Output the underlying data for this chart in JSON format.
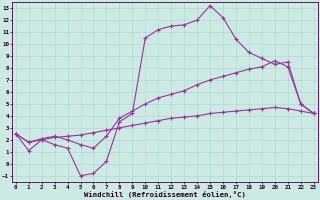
{
  "xlabel": "Windchill (Refroidissement éolien,°C)",
  "bg_color": "#cce9e4",
  "line_color": "#993399",
  "grid_color": "#aad8d2",
  "xlim": [
    -0.3,
    23.3
  ],
  "ylim": [
    -1.5,
    13.5
  ],
  "xticks": [
    0,
    1,
    2,
    3,
    4,
    5,
    6,
    7,
    8,
    9,
    10,
    11,
    12,
    13,
    14,
    15,
    16,
    17,
    18,
    19,
    20,
    21,
    22,
    23
  ],
  "yticks": [
    -1,
    0,
    1,
    2,
    3,
    4,
    5,
    6,
    7,
    8,
    9,
    10,
    11,
    12,
    13
  ],
  "line1_x": [
    0,
    1,
    2,
    3,
    4,
    5,
    6,
    7,
    8,
    9,
    10,
    11,
    12,
    13,
    14,
    15,
    16,
    17,
    18,
    19,
    20,
    21,
    22,
    23
  ],
  "line1_y": [
    2.5,
    1.1,
    2.0,
    1.6,
    1.3,
    -1.0,
    -0.8,
    0.2,
    3.5,
    4.2,
    10.5,
    11.2,
    11.5,
    11.6,
    12.0,
    13.2,
    12.2,
    10.4,
    9.3,
    8.8,
    8.3,
    8.5,
    5.0,
    4.2
  ],
  "line2_x": [
    0,
    1,
    2,
    3,
    4,
    5,
    6,
    7,
    8,
    9,
    10,
    11,
    12,
    13,
    14,
    15,
    16,
    17,
    18,
    19,
    20,
    21,
    22,
    23
  ],
  "line2_y": [
    2.5,
    1.8,
    2.1,
    2.3,
    2.0,
    1.6,
    1.3,
    2.3,
    3.8,
    4.4,
    5.0,
    5.5,
    5.8,
    6.1,
    6.6,
    7.0,
    7.3,
    7.6,
    7.9,
    8.1,
    8.6,
    8.1,
    5.0,
    4.2
  ],
  "line3_x": [
    0,
    1,
    2,
    3,
    4,
    5,
    6,
    7,
    8,
    9,
    10,
    11,
    12,
    13,
    14,
    15,
    16,
    17,
    18,
    19,
    20,
    21,
    22,
    23
  ],
  "line3_y": [
    2.5,
    1.8,
    2.0,
    2.2,
    2.3,
    2.4,
    2.6,
    2.8,
    3.0,
    3.2,
    3.4,
    3.6,
    3.8,
    3.9,
    4.0,
    4.2,
    4.3,
    4.4,
    4.5,
    4.6,
    4.7,
    4.6,
    4.4,
    4.2
  ]
}
